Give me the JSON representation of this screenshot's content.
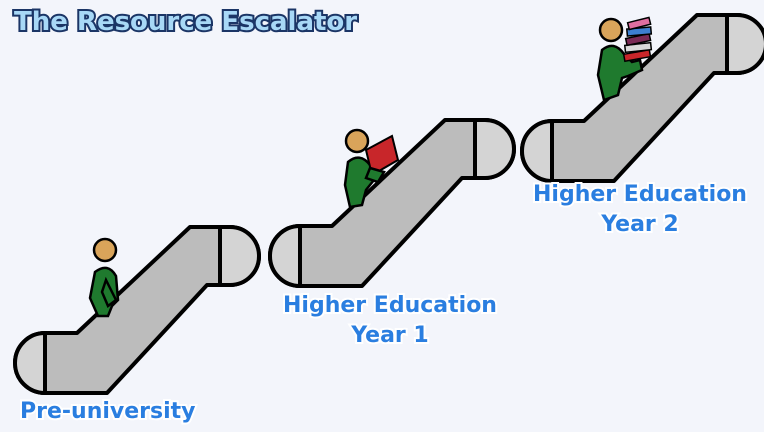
{
  "title": "The Resource Escalator",
  "stages": [
    {
      "label": [
        "Pre-university"
      ]
    },
    {
      "label": [
        "Higher Education",
        "Year 1"
      ]
    },
    {
      "label": [
        "Higher Education",
        "Year 2"
      ]
    }
  ]
}
